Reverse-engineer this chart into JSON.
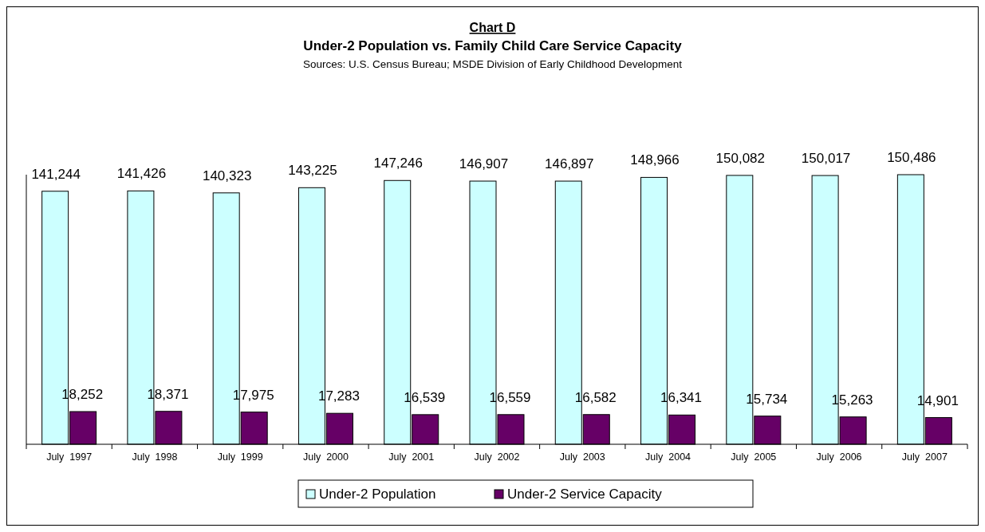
{
  "chart_data": {
    "type": "bar",
    "title": "Chart D",
    "subtitle": "Under-2 Population vs. Family Child Care Service Capacity",
    "annotations": [
      "Sources: U.S. Census Bureau; MSDE Division of Early Childhood Development"
    ],
    "categories": [
      "July  1997",
      "July  1998",
      "July  1999",
      "July  2000",
      "July  2001",
      "July  2002",
      "July  2003",
      "July  2004",
      "July  2005",
      "July  2006",
      "July  2007"
    ],
    "series": [
      {
        "name": "Under-2 Population",
        "color": "#ccffff",
        "values": [
          141244,
          141426,
          140323,
          143225,
          147246,
          146907,
          146897,
          148966,
          150082,
          150017,
          150486
        ],
        "value_labels": [
          "141,244",
          "141,426",
          "140,323",
          "143,225",
          "147,246",
          "146,907",
          "146,897",
          "148,966",
          "150,082",
          "150,017",
          "150,486"
        ]
      },
      {
        "name": "Under-2 Service Capacity",
        "color": "#660066",
        "values": [
          18252,
          18371,
          17975,
          17283,
          16539,
          16559,
          16582,
          16341,
          15734,
          15263,
          14901
        ],
        "value_labels": [
          "18,252",
          "18,371",
          "17,975",
          "17,283",
          "16,539",
          "16,559",
          "16,582",
          "16,341",
          "15,734",
          "15,263",
          "14,901"
        ]
      }
    ],
    "relative": false,
    "legend": "bottom",
    "grid": false
  }
}
